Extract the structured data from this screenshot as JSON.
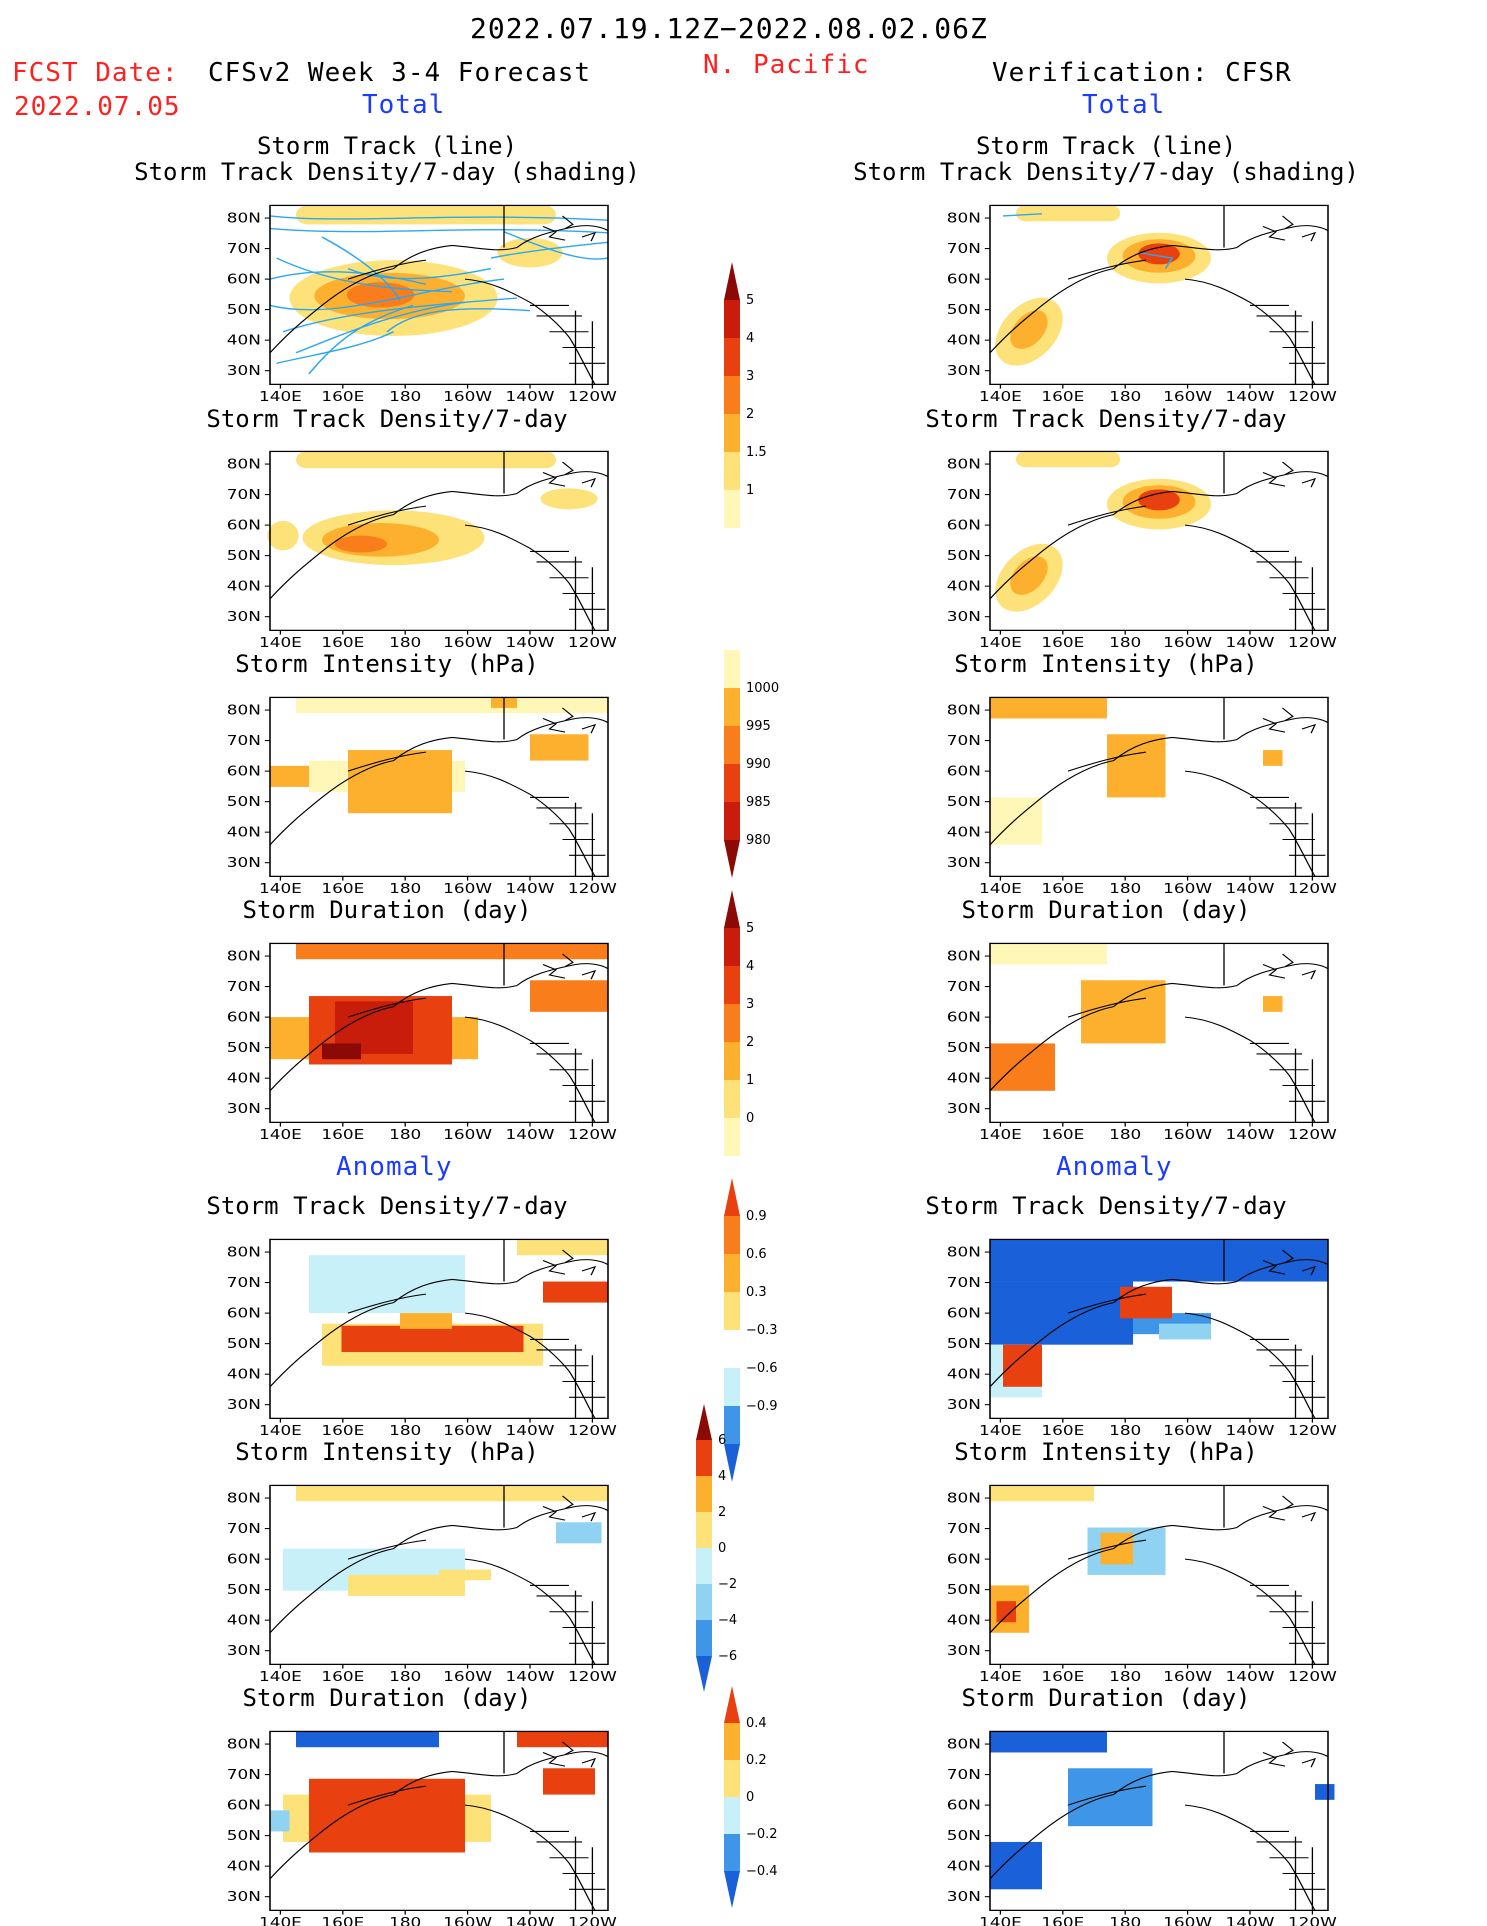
{
  "header": {
    "date_range": "2022.07.19.12Z−2022.08.02.06Z",
    "fcst_label": "FCST Date:",
    "fcst_date": "2022.07.05",
    "model_title": "CFSv2 Week 3-4 Forecast",
    "region": "N. Pacific",
    "verification": "Verification: CFSR"
  },
  "sections": {
    "total_left": "Total",
    "total_right": "Total",
    "anomaly_left": "Anomaly",
    "anomaly_right": "Anomaly"
  },
  "panel_titles": {
    "track_line": "Storm Track (line)",
    "track_shading": "Storm Track Density/7-day (shading)",
    "density": "Storm Track Density/7-day",
    "intensity": "Storm Intensity (hPa)",
    "duration": "Storm Duration (day)"
  },
  "axes": {
    "x_ticks": [
      "140E",
      "160E",
      "180",
      "160W",
      "140W",
      "120W"
    ],
    "y_ticks": [
      "80N",
      "70N",
      "60N",
      "50N",
      "40N",
      "30N"
    ]
  },
  "colorbars": {
    "density_total": [
      "5",
      "4",
      "3",
      "2",
      "1.5",
      "1"
    ],
    "intensity_total": [
      "1000",
      "995",
      "990",
      "985",
      "980"
    ],
    "duration_total": [
      "5",
      "4",
      "3",
      "2",
      "1",
      "0"
    ],
    "density_anom": [
      "0.9",
      "0.6",
      "0.3",
      "−0.3",
      "−0.6",
      "−0.9"
    ],
    "intensity_anom": [
      "6",
      "4",
      "2",
      "0",
      "−2",
      "−4",
      "−6"
    ],
    "duration_anom": [
      "0.4",
      "0.2",
      "0",
      "−0.2",
      "−0.4"
    ]
  },
  "colors": {
    "c1": "#fff7b8",
    "c2": "#fde27a",
    "c3": "#fdb02d",
    "c4": "#f97d1b",
    "c5": "#e8400f",
    "c6": "#c81d0a",
    "c7": "#8c0a05",
    "n1": "#c8f0f8",
    "n2": "#8fd2f2",
    "n3": "#3f96e8",
    "n4": "#1a60d8",
    "track": "#2aa8f0"
  }
}
